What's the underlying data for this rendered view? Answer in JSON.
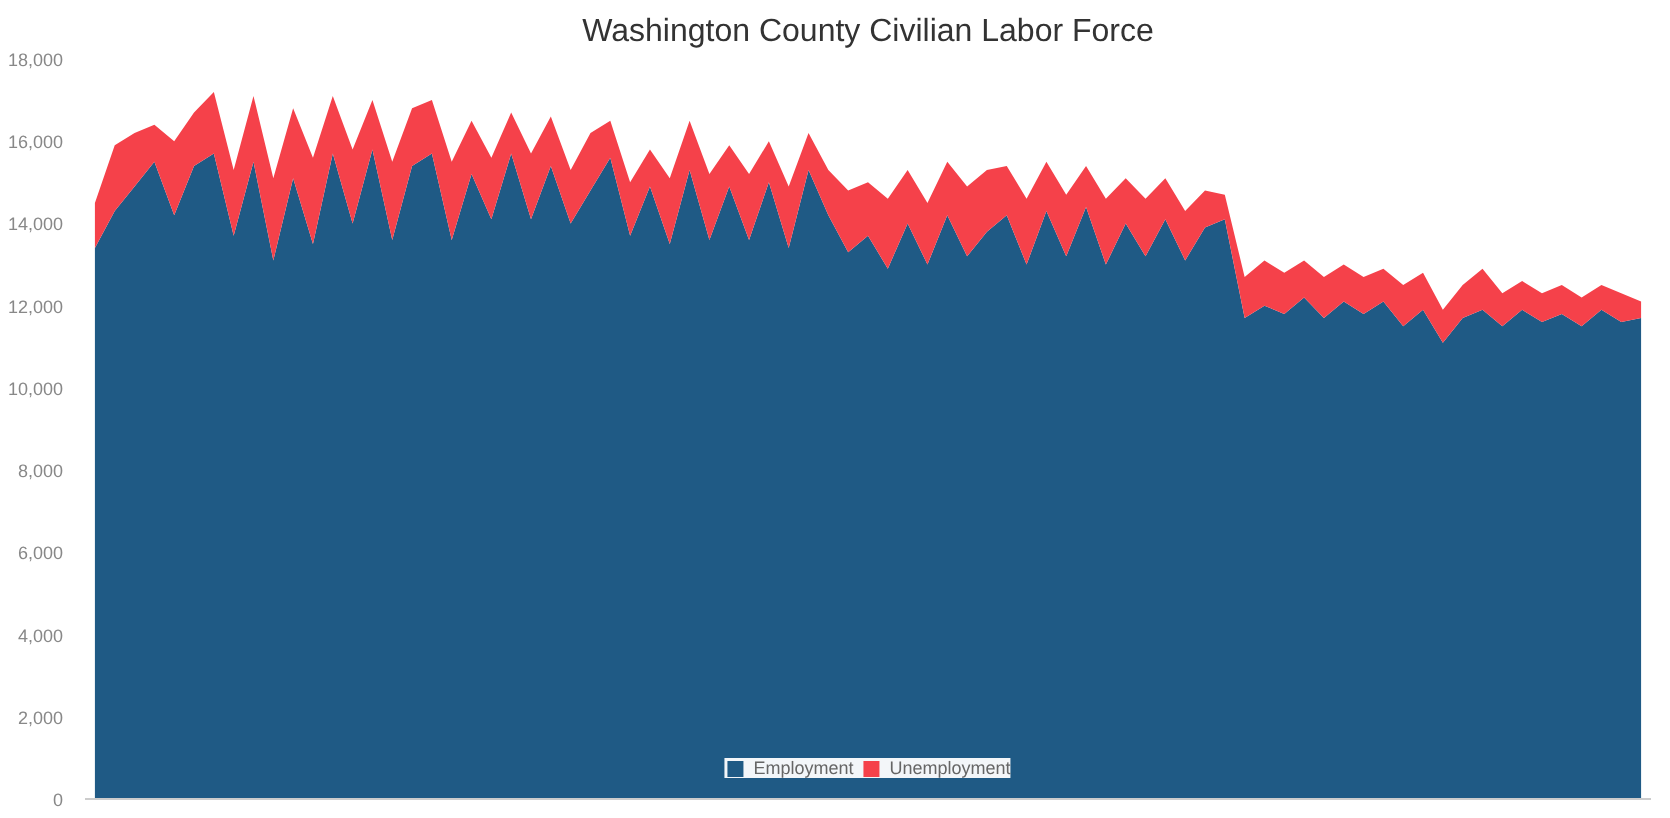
{
  "chart_data": {
    "type": "area",
    "title": "Washington County Civilian Labor Force",
    "stacked": true,
    "categories": [
      null,
      null,
      null,
      null,
      null,
      null,
      null,
      null,
      null,
      null,
      null,
      null,
      null,
      null,
      null,
      null,
      null,
      null,
      null,
      null,
      null,
      null,
      null,
      null,
      null,
      null,
      null,
      null,
      null,
      null,
      null,
      null,
      null,
      null,
      null,
      null,
      null,
      null,
      null,
      null,
      null,
      null,
      null,
      null,
      null,
      null,
      null,
      null,
      null,
      null,
      null,
      null,
      null,
      null,
      null,
      null,
      null,
      null,
      null,
      null,
      null,
      null,
      null,
      null,
      null,
      null,
      null,
      null,
      null,
      null,
      null,
      null,
      null,
      null,
      null,
      null,
      null,
      null,
      null
    ],
    "series": [
      {
        "name": "Employment",
        "color": "#1f5a85",
        "values": [
          13400,
          14300,
          14900,
          15500,
          14200,
          15400,
          15700,
          13700,
          15500,
          13100,
          15100,
          13500,
          15700,
          14000,
          15800,
          13600,
          15400,
          15700,
          13600,
          15200,
          14100,
          15700,
          14100,
          15400,
          14000,
          14800,
          15600,
          13700,
          14900,
          13500,
          15300,
          13600,
          14900,
          13600,
          15000,
          13400,
          15300,
          14200,
          13300,
          13700,
          12900,
          14000,
          13000,
          14200,
          13200,
          13800,
          14200,
          13000,
          14300,
          13200,
          14400,
          13000,
          14000,
          13200,
          14100,
          13100,
          13900,
          14100,
          11700,
          12000,
          11800,
          12200,
          11700,
          12100,
          11800,
          12100,
          11500,
          11900,
          11100,
          11700,
          11900,
          11500,
          11900,
          11600,
          11800,
          11500,
          11900,
          11600,
          11700
        ]
      },
      {
        "name": "Unemployment",
        "color": "#f5414a",
        "values": [
          1100,
          1600,
          1300,
          900,
          1800,
          1300,
          1500,
          1600,
          1600,
          2000,
          1700,
          2100,
          1400,
          1800,
          1200,
          1900,
          1400,
          1300,
          1900,
          1300,
          1500,
          1000,
          1600,
          1200,
          1300,
          1400,
          900,
          1300,
          900,
          1600,
          1200,
          1600,
          1000,
          1600,
          1000,
          1500,
          900,
          1100,
          1500,
          1300,
          1700,
          1300,
          1500,
          1300,
          1700,
          1500,
          1200,
          1600,
          1200,
          1500,
          1000,
          1600,
          1100,
          1400,
          1000,
          1200,
          900,
          600,
          1000,
          1100,
          1000,
          900,
          1000,
          900,
          900,
          800,
          1000,
          900,
          800,
          800,
          1000,
          800,
          700,
          700,
          700,
          700,
          600,
          700,
          400
        ]
      }
    ],
    "ylim": [
      0,
      18000
    ],
    "yticks": [
      0,
      {
        "value": 2000,
        "label": "2,000"
      },
      {
        "value": 4000,
        "label": "4,000"
      },
      {
        "value": 6000,
        "label": "6,000"
      },
      {
        "value": 8000,
        "label": "8,000"
      },
      {
        "value": 10000,
        "label": "10,000"
      },
      {
        "value": 12000,
        "label": "12,000"
      },
      {
        "value": 14000,
        "label": "14,000"
      },
      {
        "value": 16000,
        "label": "16,000"
      },
      {
        "value": 18000,
        "label": "18,000"
      }
    ],
    "legend": "bottom"
  }
}
